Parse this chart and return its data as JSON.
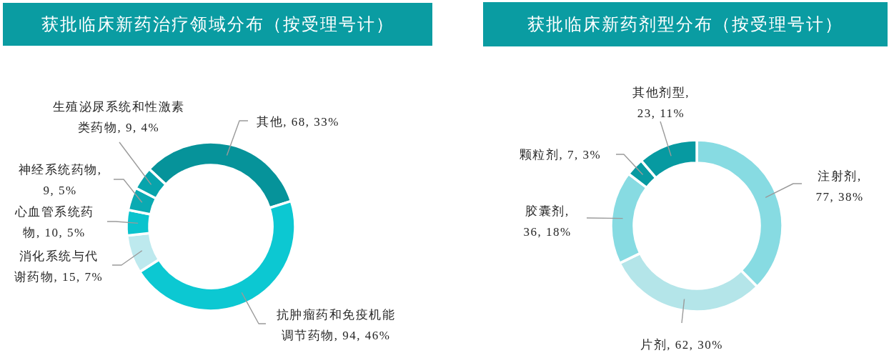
{
  "chart_data": [
    {
      "type": "donut",
      "title": "获批临床新药治疗领域分布（按受理号计）",
      "categories": [
        "其他",
        "抗肿瘤药和免疫机能调节药物",
        "消化系统与代谢药物",
        "心血管系统药物",
        "神经系统药物",
        "生殖泌尿系统和性激素类药物"
      ],
      "values": [
        68,
        94,
        15,
        10,
        9,
        9
      ],
      "value_labels": [
        ", 68, 33%",
        ", 94, 46%",
        ", 15, 7%",
        ", 10, 5%",
        ", 9, 5%",
        ", 9, 4%"
      ],
      "colors": [
        "#06939a",
        "#0cc8d2",
        "#bde9ee",
        "#0bc3cd",
        "#0aaab2",
        "#07a4ac"
      ]
    },
    {
      "type": "donut",
      "title": "获批临床新药剂型分布（按受理号计）",
      "categories": [
        "注射剂",
        "片剂",
        "胶囊剂",
        "颗粒剂",
        "其他剂型"
      ],
      "values": [
        77,
        62,
        36,
        7,
        23
      ],
      "value_labels": [
        ", 77, 38%",
        ", 62, 30%",
        ", 36, 18%",
        ", 7, 3%",
        ", 23, 11%"
      ],
      "colors": [
        "#87dbe2",
        "#b4e5e9",
        "#87dbe2",
        "#079aa1",
        "#079aa1"
      ]
    }
  ]
}
